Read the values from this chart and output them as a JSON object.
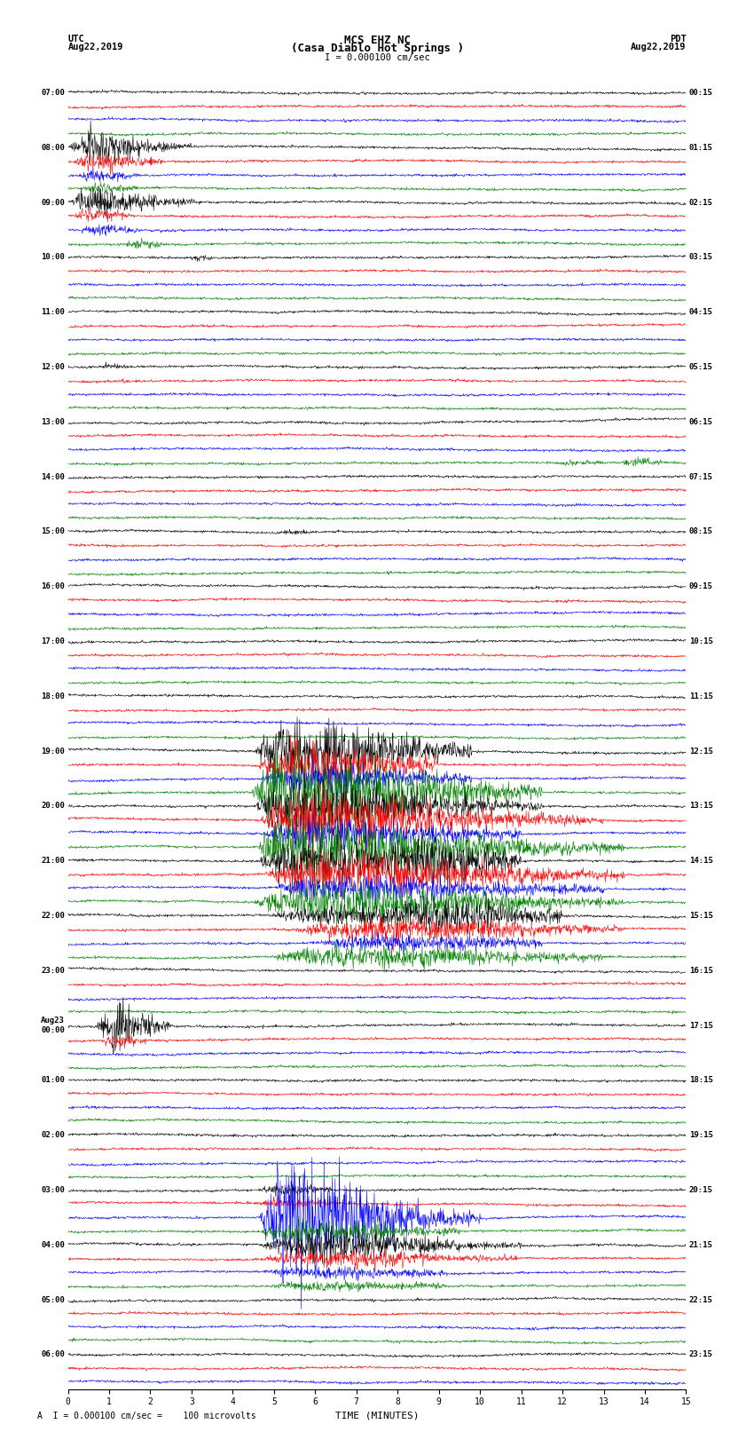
{
  "title_line1": "MCS EHZ NC",
  "title_line2": "(Casa Diablo Hot Springs )",
  "scale_label": "I = 0.000100 cm/sec",
  "left_header_line1": "UTC",
  "left_header_line2": "Aug22,2019",
  "right_header_line1": "PDT",
  "right_header_line2": "Aug22,2019",
  "xlabel": "TIME (MINUTES)",
  "footer": "A  I = 0.000100 cm/sec =    100 microvolts",
  "xlim": [
    0,
    15
  ],
  "xticks": [
    0,
    1,
    2,
    3,
    4,
    5,
    6,
    7,
    8,
    9,
    10,
    11,
    12,
    13,
    14,
    15
  ],
  "trace_color_cycle": [
    "black",
    "red",
    "blue",
    "green"
  ],
  "utc_labels": [
    "07:00",
    "08:00",
    "09:00",
    "10:00",
    "11:00",
    "12:00",
    "13:00",
    "14:00",
    "15:00",
    "16:00",
    "17:00",
    "18:00",
    "19:00",
    "20:00",
    "21:00",
    "22:00",
    "23:00",
    "Aug23\n00:00",
    "01:00",
    "02:00",
    "03:00",
    "04:00",
    "05:00",
    "06:00"
  ],
  "pdt_labels": [
    "00:15",
    "01:15",
    "02:15",
    "03:15",
    "04:15",
    "05:15",
    "06:15",
    "07:15",
    "08:15",
    "09:15",
    "10:15",
    "11:15",
    "12:15",
    "13:15",
    "14:15",
    "15:15",
    "16:15",
    "17:15",
    "18:15",
    "19:15",
    "20:15",
    "21:15",
    "22:15",
    "23:15"
  ],
  "n_rows": 95,
  "line_linewidth": 0.4,
  "grid_color": "#cccccc",
  "background": "white"
}
